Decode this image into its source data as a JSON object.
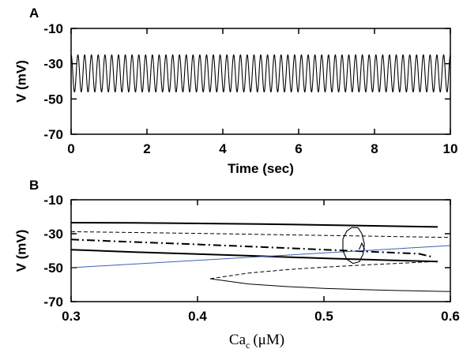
{
  "chart_data": [
    {
      "panel_label": "A",
      "type": "line",
      "xlabel": "Time (sec)",
      "ylabel": "V (mV)",
      "xlim": [
        0,
        10
      ],
      "ylim": [
        -70,
        -10
      ],
      "xticks": [
        "0",
        "2",
        "4",
        "6",
        "8",
        "10"
      ],
      "yticks": [
        "-10",
        "-30",
        "-50",
        "-70"
      ],
      "grid": false,
      "series": [
        {
          "color": "#000000",
          "oscillation": {
            "period_sec": 0.1786,
            "peak_mV": -25,
            "trough_mV": -46
          }
        }
      ]
    },
    {
      "panel_label": "B",
      "type": "line",
      "xlabel_main": "Ca",
      "xlabel_sub": "c",
      "xlabel_unit": "(μM)",
      "ylabel": "V (mV)",
      "xlim": [
        0.3,
        0.6
      ],
      "ylim": [
        -70,
        -10
      ],
      "xticks": [
        "0.3",
        "0.4",
        "0.5",
        "0.6"
      ],
      "yticks": [
        "-10",
        "-30",
        "-50",
        "-70"
      ],
      "grid": false,
      "series": [
        {
          "style": "solid-thick",
          "color": "#000000",
          "x": [
            0.3,
            0.35,
            0.45,
            0.52,
            0.59
          ],
          "y": [
            -23.5,
            -23.6,
            -24.3,
            -25.1,
            -26
          ]
        },
        {
          "style": "dashed-thin",
          "color": "#000000",
          "x": [
            0.3,
            0.4,
            0.5,
            0.6
          ],
          "y": [
            -28.8,
            -29.8,
            -31,
            -32.2
          ]
        },
        {
          "style": "dashdot-thick",
          "color": "#000000",
          "x": [
            0.3,
            0.35,
            0.4,
            0.45,
            0.5,
            0.55,
            0.575,
            0.585
          ],
          "y": [
            -33.4,
            -34.9,
            -36.3,
            -37.8,
            -39.4,
            -41,
            -41.8,
            -43.5
          ]
        },
        {
          "style": "solid-thick",
          "color": "#000000",
          "x": [
            0.3,
            0.35,
            0.4,
            0.45,
            0.5,
            0.55,
            0.59
          ],
          "y": [
            -39.4,
            -40.8,
            -42,
            -43.2,
            -44.5,
            -45.6,
            -46.4
          ]
        },
        {
          "style": "solid-thin",
          "color": "#3f5fb5",
          "x": [
            0.3,
            0.6
          ],
          "y": [
            -50,
            -37
          ]
        },
        {
          "style": "dashed-thin",
          "color": "#000000",
          "x": [
            0.41,
            0.44,
            0.47,
            0.5,
            0.53,
            0.56,
            0.585
          ],
          "y": [
            -56.5,
            -53.2,
            -51.2,
            -49.7,
            -48.5,
            -47.4,
            -46.5
          ]
        },
        {
          "style": "solid-thin",
          "color": "#000000",
          "x": [
            0.41,
            0.44,
            0.47,
            0.5,
            0.53,
            0.56,
            0.6
          ],
          "y": [
            -56.5,
            -59.6,
            -61.1,
            -62.2,
            -62.9,
            -63.5,
            -64.1
          ]
        },
        {
          "style": "loop",
          "color": "#000000",
          "x": [
            0.527,
            0.53,
            0.532,
            0.531,
            0.528,
            0.523,
            0.518,
            0.515,
            0.515,
            0.518,
            0.522,
            0.527
          ],
          "y": [
            -26.5,
            -30,
            -36,
            -42,
            -46.5,
            -47.5,
            -45,
            -40,
            -33,
            -28.5,
            -26.3,
            -26.5
          ]
        }
      ]
    }
  ]
}
